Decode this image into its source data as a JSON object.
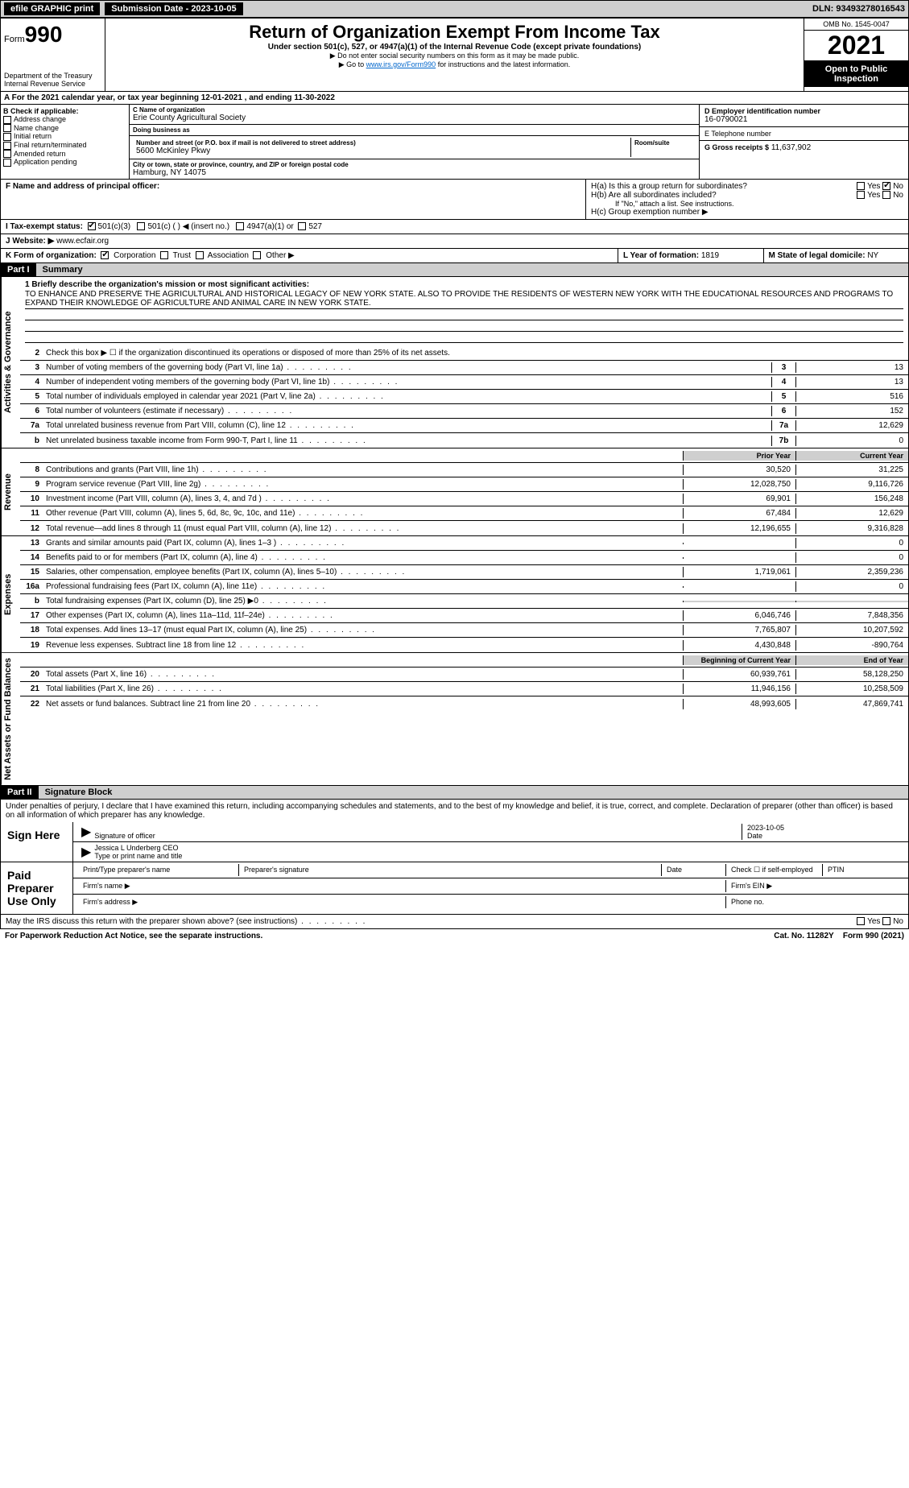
{
  "topbar": {
    "efile": "efile GRAPHIC print",
    "submission_label": "Submission Date - 2023-10-05",
    "dln": "DLN: 93493278016543"
  },
  "header": {
    "form_word": "Form",
    "form_num": "990",
    "dept": "Department of the Treasury",
    "irs": "Internal Revenue Service",
    "title": "Return of Organization Exempt From Income Tax",
    "subtitle": "Under section 501(c), 527, or 4947(a)(1) of the Internal Revenue Code (except private foundations)",
    "note1": "▶ Do not enter social security numbers on this form as it may be made public.",
    "note2_pre": "▶ Go to ",
    "note2_link": "www.irs.gov/Form990",
    "note2_post": " for instructions and the latest information.",
    "omb": "OMB No. 1545-0047",
    "year": "2021",
    "inspect": "Open to Public Inspection"
  },
  "period": {
    "text": "A For the 2021 calendar year, or tax year beginning 12-01-2021    , and ending 11-30-2022"
  },
  "boxB": {
    "label": "B Check if applicable:",
    "items": [
      "Address change",
      "Name change",
      "Initial return",
      "Final return/terminated",
      "Amended return",
      "Application pending"
    ]
  },
  "boxC": {
    "name_label": "C Name of organization",
    "name": "Erie County Agricultural Society",
    "dba_label": "Doing business as",
    "dba": "",
    "street_label": "Number and street (or P.O. box if mail is not delivered to street address)",
    "street": "5600 McKinley Pkwy",
    "room_label": "Room/suite",
    "city_label": "City or town, state or province, country, and ZIP or foreign postal code",
    "city": "Hamburg, NY  14075"
  },
  "boxD": {
    "label": "D Employer identification number",
    "ein": "16-0790021",
    "tel_label": "E Telephone number",
    "tel": "",
    "gross_label": "G Gross receipts $",
    "gross": "11,637,902"
  },
  "boxF": {
    "label": "F  Name and address of principal officer:"
  },
  "boxH": {
    "a": "H(a)  Is this a group return for subordinates?",
    "b": "H(b)  Are all subordinates included?",
    "b_note": "If \"No,\" attach a list. See instructions.",
    "c": "H(c)  Group exemption number ▶",
    "yes": "Yes",
    "no": "No"
  },
  "boxI": {
    "label": "I  Tax-exempt status:",
    "o1": "501(c)(3)",
    "o2": "501(c) (  ) ◀ (insert no.)",
    "o3": "4947(a)(1) or",
    "o4": "527"
  },
  "boxJ": {
    "label": "J  Website: ▶",
    "value": "www.ecfair.org"
  },
  "boxK": {
    "label": "K Form of organization:",
    "o1": "Corporation",
    "o2": "Trust",
    "o3": "Association",
    "o4": "Other ▶"
  },
  "boxL": {
    "label": "L Year of formation:",
    "value": "1819"
  },
  "boxM": {
    "label": "M State of legal domicile:",
    "value": "NY"
  },
  "part1": {
    "hdr": "Part I",
    "title": "Summary"
  },
  "summary": {
    "tab_gov": "Activities & Governance",
    "tab_rev": "Revenue",
    "tab_exp": "Expenses",
    "tab_net": "Net Assets or Fund Balances",
    "l1_label": "1  Briefly describe the organization's mission or most significant activities:",
    "l1_text": "TO ENHANCE AND PRESERVE THE AGRICULTURAL AND HISTORICAL LEGACY OF NEW YORK STATE. ALSO TO PROVIDE THE RESIDENTS OF WESTERN NEW YORK WITH THE EDUCATIONAL RESOURCES AND PROGRAMS TO EXPAND THEIR KNOWLEDGE OF AGRICULTURE AND ANIMAL CARE IN NEW YORK STATE.",
    "l2": "Check this box ▶ ☐  if the organization discontinued its operations or disposed of more than 25% of its net assets.",
    "lines_gov": [
      {
        "n": "3",
        "t": "Number of voting members of the governing body (Part VI, line 1a)",
        "c": "3",
        "v": "13"
      },
      {
        "n": "4",
        "t": "Number of independent voting members of the governing body (Part VI, line 1b)",
        "c": "4",
        "v": "13"
      },
      {
        "n": "5",
        "t": "Total number of individuals employed in calendar year 2021 (Part V, line 2a)",
        "c": "5",
        "v": "516"
      },
      {
        "n": "6",
        "t": "Total number of volunteers (estimate if necessary)",
        "c": "6",
        "v": "152"
      },
      {
        "n": "7a",
        "t": "Total unrelated business revenue from Part VIII, column (C), line 12",
        "c": "7a",
        "v": "12,629"
      },
      {
        "n": "b",
        "t": "Net unrelated business taxable income from Form 990-T, Part I, line 11",
        "c": "7b",
        "v": "0"
      }
    ],
    "col_prior": "Prior Year",
    "col_curr": "Current Year",
    "lines_rev": [
      {
        "n": "8",
        "t": "Contributions and grants (Part VIII, line 1h)",
        "p": "30,520",
        "c": "31,225"
      },
      {
        "n": "9",
        "t": "Program service revenue (Part VIII, line 2g)",
        "p": "12,028,750",
        "c": "9,116,726"
      },
      {
        "n": "10",
        "t": "Investment income (Part VIII, column (A), lines 3, 4, and 7d )",
        "p": "69,901",
        "c": "156,248"
      },
      {
        "n": "11",
        "t": "Other revenue (Part VIII, column (A), lines 5, 6d, 8c, 9c, 10c, and 11e)",
        "p": "67,484",
        "c": "12,629"
      },
      {
        "n": "12",
        "t": "Total revenue—add lines 8 through 11 (must equal Part VIII, column (A), line 12)",
        "p": "12,196,655",
        "c": "9,316,828"
      }
    ],
    "lines_exp": [
      {
        "n": "13",
        "t": "Grants and similar amounts paid (Part IX, column (A), lines 1–3 )",
        "p": "",
        "c": "0"
      },
      {
        "n": "14",
        "t": "Benefits paid to or for members (Part IX, column (A), line 4)",
        "p": "",
        "c": "0"
      },
      {
        "n": "15",
        "t": "Salaries, other compensation, employee benefits (Part IX, column (A), lines 5–10)",
        "p": "1,719,061",
        "c": "2,359,236"
      },
      {
        "n": "16a",
        "t": "Professional fundraising fees (Part IX, column (A), line 11e)",
        "p": "",
        "c": "0"
      },
      {
        "n": "b",
        "t": "Total fundraising expenses (Part IX, column (D), line 25) ▶0",
        "p": "shade",
        "c": "shade"
      },
      {
        "n": "17",
        "t": "Other expenses (Part IX, column (A), lines 11a–11d, 11f–24e)",
        "p": "6,046,746",
        "c": "7,848,356"
      },
      {
        "n": "18",
        "t": "Total expenses. Add lines 13–17 (must equal Part IX, column (A), line 25)",
        "p": "7,765,807",
        "c": "10,207,592"
      },
      {
        "n": "19",
        "t": "Revenue less expenses. Subtract line 18 from line 12",
        "p": "4,430,848",
        "c": "-890,764"
      }
    ],
    "col_beg": "Beginning of Current Year",
    "col_end": "End of Year",
    "lines_net": [
      {
        "n": "20",
        "t": "Total assets (Part X, line 16)",
        "p": "60,939,761",
        "c": "58,128,250"
      },
      {
        "n": "21",
        "t": "Total liabilities (Part X, line 26)",
        "p": "11,946,156",
        "c": "10,258,509"
      },
      {
        "n": "22",
        "t": "Net assets or fund balances. Subtract line 21 from line 20",
        "p": "48,993,605",
        "c": "47,869,741"
      }
    ]
  },
  "part2": {
    "hdr": "Part II",
    "title": "Signature Block"
  },
  "sig": {
    "penalty": "Under penalties of perjury, I declare that I have examined this return, including accompanying schedules and statements, and to the best of my knowledge and belief, it is true, correct, and complete. Declaration of preparer (other than officer) is based on all information of which preparer has any knowledge.",
    "sign_here": "Sign Here",
    "sig_officer": "Signature of officer",
    "date": "Date",
    "date_val": "2023-10-05",
    "name_title": "Jessica L Underberg CEO",
    "name_label": "Type or print name and title",
    "paid": "Paid Preparer Use Only",
    "prep_name": "Print/Type preparer's name",
    "prep_sig": "Preparer's signature",
    "prep_date": "Date",
    "check_self": "Check ☐ if self-employed",
    "ptin": "PTIN",
    "firm_name": "Firm's name  ▶",
    "firm_ein": "Firm's EIN ▶",
    "firm_addr": "Firm's address ▶",
    "phone": "Phone no.",
    "may_irs": "May the IRS discuss this return with the preparer shown above? (see instructions)"
  },
  "footer": {
    "left": "For Paperwork Reduction Act Notice, see the separate instructions.",
    "mid": "Cat. No. 11282Y",
    "right": "Form 990 (2021)"
  }
}
